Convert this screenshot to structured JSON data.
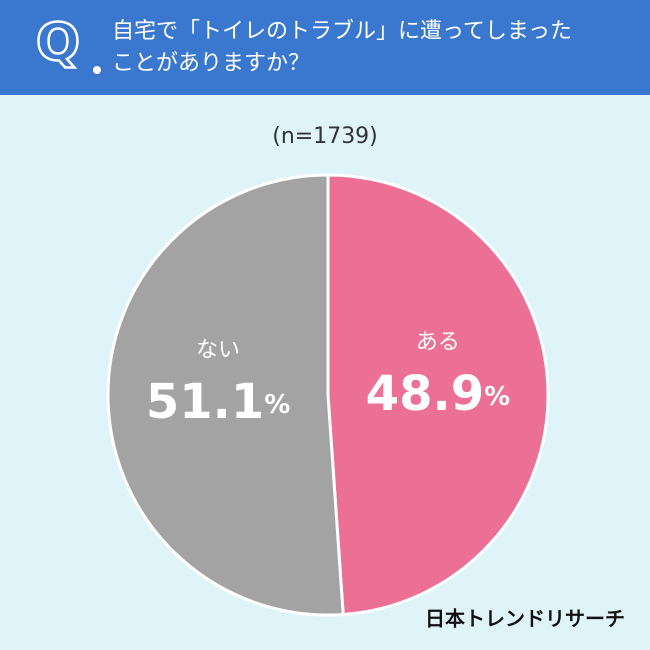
{
  "chart_data": {
    "type": "pie",
    "badge": "Q",
    "title": [
      "自宅で「トイレのトラブル」に遭ってしまった",
      "ことがありますか？"
    ],
    "subtitle": "(n=1739)",
    "categories": [
      "ある",
      "ない"
    ],
    "values": [
      48.9,
      51.1
    ],
    "value_labels": [
      "48.9%",
      "51.1%"
    ],
    "colors": [
      "#ec7096",
      "#a3a3a3"
    ],
    "source": "日本トレンドリサーチ"
  }
}
